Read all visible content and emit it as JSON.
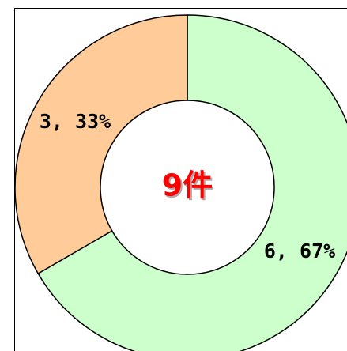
{
  "chart_data": {
    "type": "pie",
    "donut": true,
    "values": [
      6,
      3
    ],
    "value_labels": [
      "6, 67%",
      "3, 33%"
    ],
    "colors": [
      "#ccffcc",
      "#ffcc99"
    ],
    "center_label": "9件"
  }
}
